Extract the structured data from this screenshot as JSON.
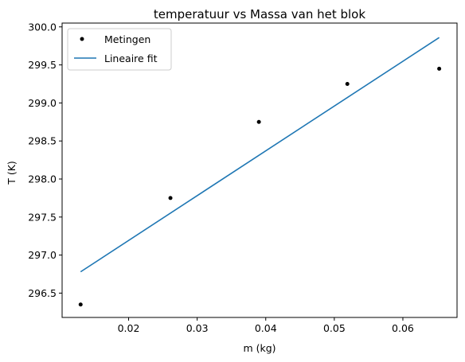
{
  "chart_data": {
    "type": "scatter",
    "title": "temperatuur vs Massa van het blok",
    "xlabel": "m (kg)",
    "ylabel": "T (K)",
    "xlim": [
      0.0103,
      0.0679
    ],
    "ylim": [
      296.18,
      300.05
    ],
    "x_ticks": [
      0.02,
      0.03,
      0.04,
      0.05,
      0.06
    ],
    "x_tick_labels": [
      "0.02",
      "0.03",
      "0.04",
      "0.05",
      "0.06"
    ],
    "y_ticks": [
      296.5,
      297.0,
      297.5,
      298.0,
      298.5,
      299.0,
      299.5,
      300.0
    ],
    "y_tick_labels": [
      "296.5",
      "297.0",
      "297.5",
      "298.0",
      "298.5",
      "299.0",
      "299.5",
      "300.0"
    ],
    "grid": false,
    "legend": "top-left",
    "series": [
      {
        "name": "Metingen",
        "kind": "points",
        "color": "#000000",
        "x": [
          0.013,
          0.0261,
          0.039,
          0.0519,
          0.0653
        ],
        "y": [
          296.35,
          297.75,
          298.75,
          299.25,
          299.45
        ]
      },
      {
        "name": "Lineaire fit",
        "kind": "line",
        "color": "#1f77b4",
        "x": [
          0.013,
          0.0653
        ],
        "y": [
          296.78,
          299.86
        ]
      }
    ]
  }
}
